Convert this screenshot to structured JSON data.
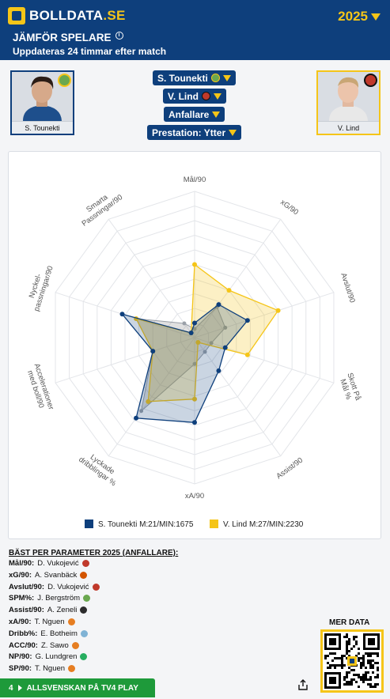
{
  "header": {
    "brand_main": "BOLLDATA",
    "brand_tld": ".SE",
    "season": "2025",
    "title": "JÄMFÖR SPELARE",
    "subtitle": "Uppdateras 24 timmar efter match"
  },
  "players": [
    {
      "name": "S. Tounekti",
      "accent": "#0e3f7c",
      "club_color": "#6aa84f"
    },
    {
      "name": "V. Lind",
      "accent": "#f5c518",
      "club_color": "#c0392b"
    }
  ],
  "selectors": {
    "player1": "S. Tounekti",
    "player2": "V. Lind",
    "position": "Anfallare",
    "role": "Prestation: Ytter"
  },
  "chart_data": {
    "type": "radar",
    "axes": [
      "Mål/90",
      "xG/90",
      "Avslut/90",
      "Skott På Mål %",
      "Assist/90",
      "xA/90",
      "Lyckade dribblingar %",
      "Accelerationer med boll/90",
      "Nyckel-passningar/90",
      "Smarta Passningar/90"
    ],
    "scale": [
      0,
      100
    ],
    "series": [
      {
        "name": "S. Tounekti M:21/MIN:1675",
        "color": "#0e3f7c",
        "values": [
          10,
          28,
          38,
          22,
          28,
          58,
          68,
          30,
          52,
          4
        ]
      },
      {
        "name": "V. Lind M:27/MIN:2230",
        "color": "#f5c518",
        "values": [
          50,
          40,
          60,
          38,
          4,
          42,
          54,
          30,
          42,
          4
        ]
      },
      {
        "name": "",
        "color": "#9aa0a8",
        "values": [
          6,
          26,
          22,
          12,
          12,
          18,
          62,
          30,
          42,
          12
        ]
      }
    ],
    "legend": "bottom"
  },
  "best": {
    "title": "BÄST PER PARAMETER 2025 (ANFALLARE):",
    "rows": [
      {
        "param": "Mål/90:",
        "player": "D. Vukojević",
        "color": "#c0392b"
      },
      {
        "param": "xG/90:",
        "player": "A. Svanbäck",
        "color": "#d35400"
      },
      {
        "param": "Avslut/90:",
        "player": "D. Vukojević",
        "color": "#c0392b"
      },
      {
        "param": "SPM%:",
        "player": "J. Bergström",
        "color": "#6aa84f"
      },
      {
        "param": "Assist/90:",
        "player": "A. Zeneli",
        "color": "#2c2c2c"
      },
      {
        "param": "xA/90:",
        "player": "T. Nguen",
        "color": "#e67e22"
      },
      {
        "param": "Dribb%:",
        "player": "E. Botheim",
        "color": "#7fb3d5"
      },
      {
        "param": "ACC/90:",
        "player": "Z. Sawo",
        "color": "#e67e22"
      },
      {
        "param": "NP/90:",
        "player": "G. Lundgren",
        "color": "#27ae60"
      },
      {
        "param": "SP/90:",
        "player": "T. Nguen",
        "color": "#e67e22"
      }
    ]
  },
  "footer": {
    "mer_data": "MER DATA",
    "banner_num": "4",
    "banner_text": "ALLSVENSKAN PÅ TV4 PLAY"
  }
}
